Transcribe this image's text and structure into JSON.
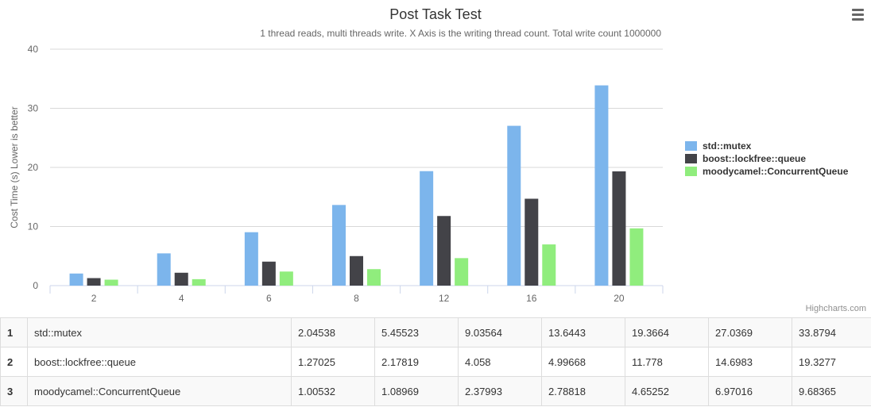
{
  "chart_data": {
    "type": "bar",
    "title": "Post Task Test",
    "subtitle": "1 thread reads, multi threads write. X Axis is the writing thread count. Total write count 1000000",
    "xlabel": "",
    "ylabel": "Cost Time (s) Lower is better",
    "categories": [
      "2",
      "4",
      "6",
      "8",
      "12",
      "16",
      "20"
    ],
    "ylim": [
      0,
      40
    ],
    "yticks": [
      0,
      10,
      20,
      30,
      40
    ],
    "grid": true,
    "legend_position": "right",
    "series": [
      {
        "name": "std::mutex",
        "color": "#7cb5ec",
        "values": [
          2.04538,
          5.45523,
          9.03564,
          13.6443,
          19.3664,
          27.0369,
          33.8794
        ]
      },
      {
        "name": "boost::lockfree::queue",
        "color": "#434348",
        "values": [
          1.27025,
          2.17819,
          4.058,
          4.99668,
          11.778,
          14.6983,
          19.3277
        ]
      },
      {
        "name": "moodycamel::ConcurrentQueue",
        "color": "#90ed7d",
        "values": [
          1.00532,
          1.08969,
          2.37993,
          2.78818,
          4.65252,
          6.97016,
          9.68365
        ]
      }
    ],
    "credit": "Highcharts.com"
  },
  "table": {
    "rows": [
      {
        "index": "1",
        "name": "std::mutex",
        "values": [
          "2.04538",
          "5.45523",
          "9.03564",
          "13.6443",
          "19.3664",
          "27.0369",
          "33.8794"
        ]
      },
      {
        "index": "2",
        "name": "boost::lockfree::queue",
        "values": [
          "1.27025",
          "2.17819",
          "4.058",
          "4.99668",
          "11.778",
          "14.6983",
          "19.3277"
        ]
      },
      {
        "index": "3",
        "name": "moodycamel::ConcurrentQueue",
        "values": [
          "1.00532",
          "1.08969",
          "2.37993",
          "2.78818",
          "4.65252",
          "6.97016",
          "9.68365"
        ]
      }
    ]
  },
  "icons": {
    "menu": "hamburger-menu-icon"
  }
}
